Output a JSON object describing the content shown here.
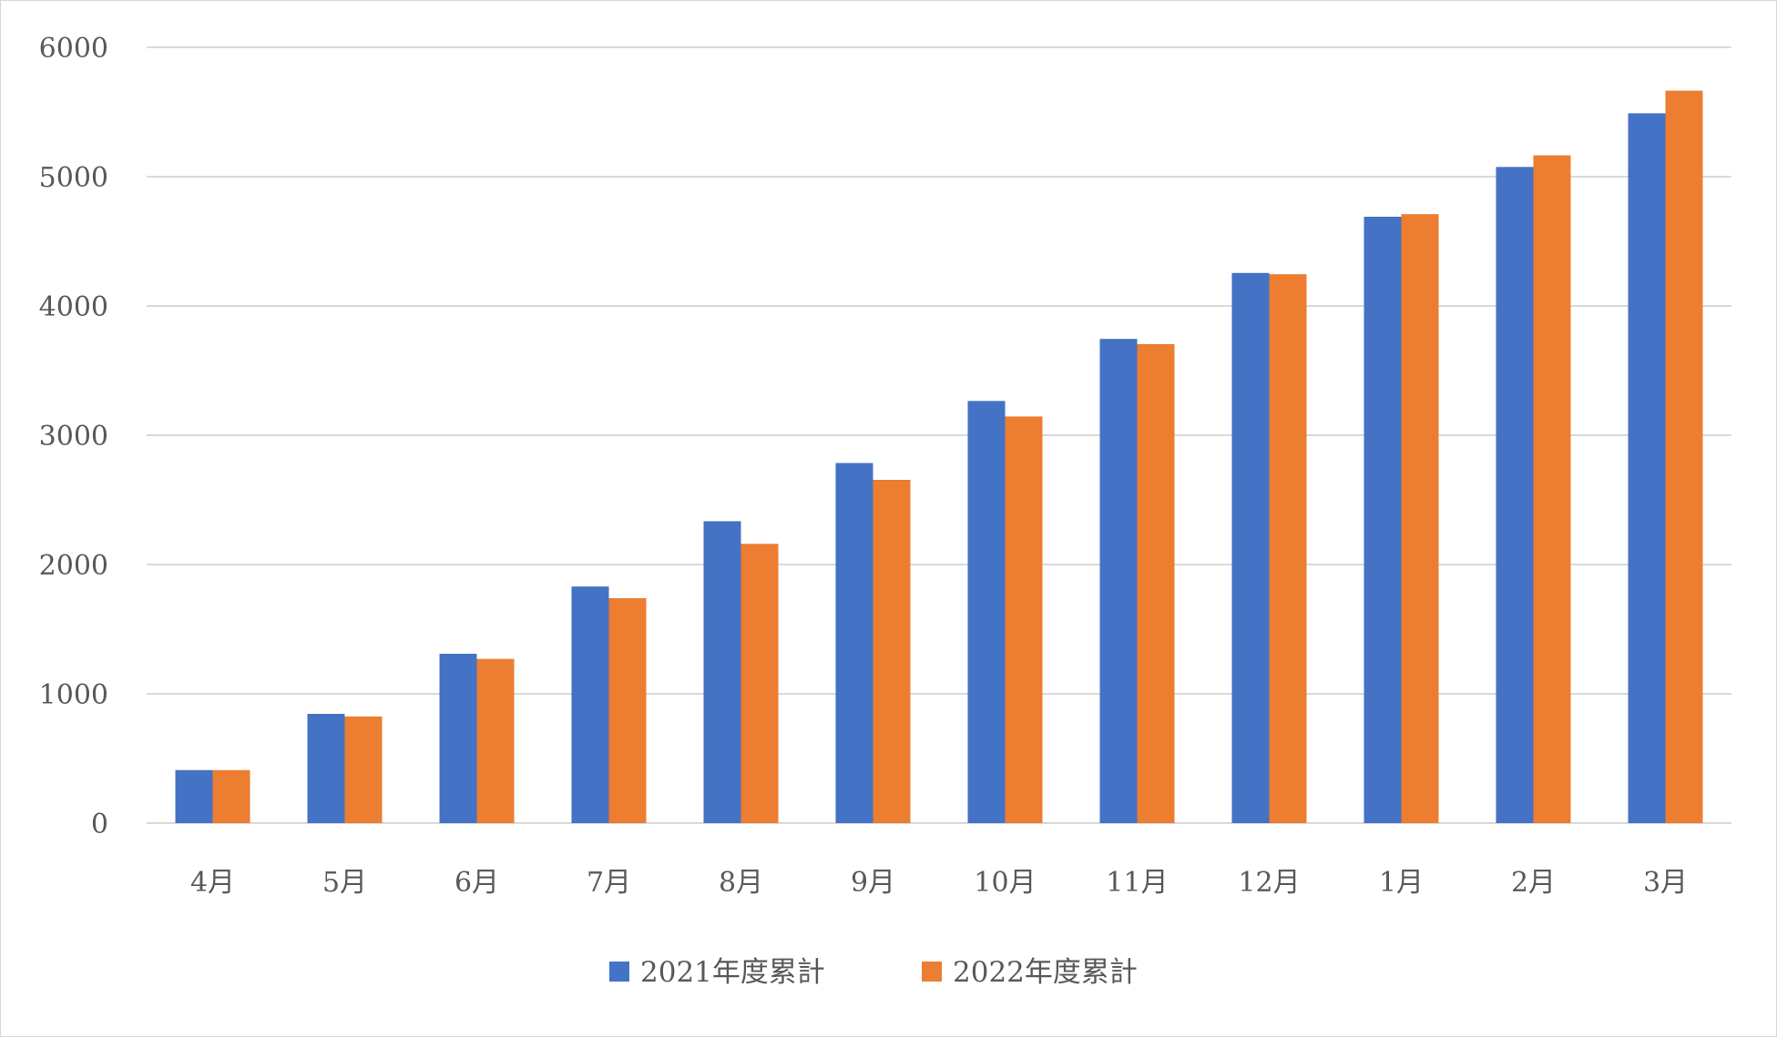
{
  "chart_data": {
    "type": "bar",
    "title": "",
    "xlabel": "",
    "ylabel": "",
    "categories": [
      "4月",
      "5月",
      "6月",
      "7月",
      "8月",
      "9月",
      "10月",
      "11月",
      "12月",
      "1月",
      "2月",
      "3月"
    ],
    "series": [
      {
        "name": "2021年度累計",
        "color": "#4472C4",
        "values": [
          410,
          845,
          1310,
          1830,
          2335,
          2785,
          3265,
          3745,
          4255,
          4690,
          5075,
          5490
        ]
      },
      {
        "name": "2022年度累計",
        "color": "#ED7D31",
        "values": [
          410,
          825,
          1270,
          1740,
          2160,
          2655,
          3145,
          3705,
          4245,
          4710,
          5165,
          5665
        ]
      }
    ],
    "ylim": [
      0,
      6000
    ],
    "yticks": [
      0,
      1000,
      2000,
      3000,
      4000,
      5000,
      6000
    ],
    "grid": true,
    "gridColor": "#d9d9d9",
    "legend": "bottom"
  }
}
